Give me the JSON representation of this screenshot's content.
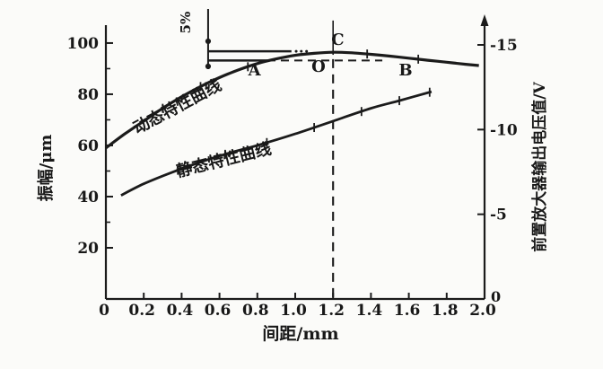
{
  "figure": {
    "background": "#fbfbf9",
    "ink": "#1b1b1b"
  },
  "chart_data": {
    "type": "line",
    "title": "",
    "xlabel": "间距/mm",
    "ylabel_left": "振幅/μm",
    "ylabel_right": "前置放大器输出电压值/V",
    "x_axis": {
      "min": 0,
      "max": 2.0,
      "tick_values": [
        0,
        0.2,
        0.4,
        0.6,
        0.8,
        1.0,
        1.2,
        1.4,
        1.6,
        1.8,
        2.0
      ],
      "tick_labels": [
        "0",
        "0.2",
        "0.4",
        "0.6",
        "0.8",
        "1.0",
        "1.2",
        "1.4",
        "1.6",
        "1.8",
        "2.0"
      ]
    },
    "y_axis_left": {
      "min": 0,
      "max": 107,
      "tick_values": [
        20,
        40,
        60,
        80,
        100
      ],
      "tick_labels": [
        "20",
        "40",
        "60",
        "80",
        "100"
      ],
      "minor_tick_values": [
        30,
        50,
        70,
        90
      ]
    },
    "y_axis_right": {
      "min": 0,
      "max": -15,
      "tick_values": [
        5,
        10,
        15
      ],
      "tick_labels": [
        "-5",
        "-10",
        "-15"
      ],
      "zero_label": "0",
      "arrow": "up-arrow"
    },
    "series": [
      {
        "name": "动态特性曲线",
        "x": [
          0,
          0.1,
          0.2,
          0.3,
          0.4,
          0.5,
          0.6,
          0.7,
          0.8,
          0.9,
          1.0,
          1.1,
          1.2,
          1.3,
          1.4,
          1.5,
          1.6,
          1.7,
          1.8,
          1.9,
          1.97
        ],
        "values": [
          59,
          64.5,
          69.5,
          74.5,
          79,
          83,
          86.5,
          89.5,
          92,
          93.8,
          95.2,
          96,
          96.4,
          96.2,
          95.6,
          94.9,
          94.1,
          93.3,
          92.5,
          91.7,
          91.2
        ],
        "label_x": 0.39,
        "label_v": 73.3,
        "label_angle": -28,
        "hatch_xs": [
          0.3,
          0.5,
          0.75,
          1.38,
          1.65
        ]
      },
      {
        "name": "静态特性曲线",
        "x": [
          0.08,
          0.2,
          0.35,
          0.5,
          0.65,
          0.8,
          1.0,
          1.2,
          1.4,
          1.55,
          1.72
        ],
        "values": [
          40.5,
          45,
          49.5,
          53.5,
          57,
          60,
          64.5,
          69.5,
          74.5,
          77.5,
          81
        ],
        "label_x": 0.63,
        "label_v": 52.3,
        "label_angle": -14,
        "hatch_xs": [
          0.38,
          0.63,
          0.85,
          1.1,
          1.35,
          1.55,
          1.71
        ]
      }
    ],
    "points": [
      {
        "label": "A",
        "x": 0.785,
        "v": 89.5
      },
      {
        "label": "O",
        "x": 1.123,
        "v": 90.9
      },
      {
        "label": "C",
        "x": 1.225,
        "v": 101.4
      },
      {
        "label": "B",
        "x": 1.583,
        "v": 89.5
      }
    ],
    "annotations": {
      "five_percent": {
        "label": "5%",
        "x": 0.54,
        "line_top_v": 113.3,
        "line_bottom_v": 89.8,
        "dot_vs": [
          100.7,
          90.9
        ],
        "label_v": 108
      },
      "levels": {
        "upper_v": 96.8,
        "upper_solid_x": [
          0.54,
          0.98
        ],
        "upper_dot_xs": [
          1.005,
          1.032,
          1.06
        ],
        "lower_v": 93.2,
        "lower_solid_x": [
          0.54,
          0.853
        ],
        "lower_dashed_x": [
          0.853,
          1.46
        ]
      },
      "vline": {
        "x": 1.2,
        "solid_v": [
          95.4,
          108.8
        ],
        "dashed_v": [
          0,
          93.7
        ],
        "cross_v": 96.4
      }
    }
  }
}
